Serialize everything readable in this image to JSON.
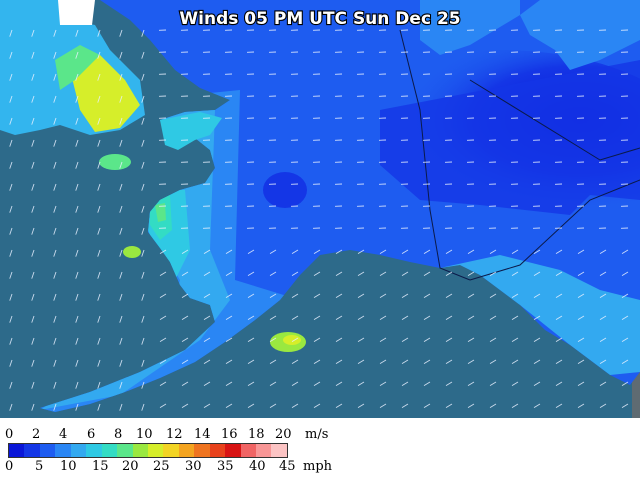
{
  "title": "Winds 05 PM UTC Sun Dec 25",
  "colors": {
    "ocean": "#2d6a8a",
    "outside": "#5f6b72",
    "bins": [
      "#0a16d8",
      "#1436e6",
      "#1e5cf0",
      "#2a86f4",
      "#33a9f0",
      "#2fc9e4",
      "#33dcc4",
      "#5be68a",
      "#9ae840",
      "#d6ee2a",
      "#f2d424",
      "#f4a420",
      "#ef7420",
      "#e8421c",
      "#d81414",
      "#f06464",
      "#f89696",
      "#fcc4c4"
    ]
  },
  "legend": {
    "ms_ticks": [
      "0",
      "2",
      "4",
      "6",
      "8",
      "10",
      "12",
      "14",
      "16",
      "18",
      "20"
    ],
    "ms_unit": "m/s",
    "mph_ticks": [
      "0",
      "5",
      "10",
      "15",
      "20",
      "25",
      "30",
      "35",
      "40",
      "45"
    ],
    "mph_unit": "mph"
  }
}
